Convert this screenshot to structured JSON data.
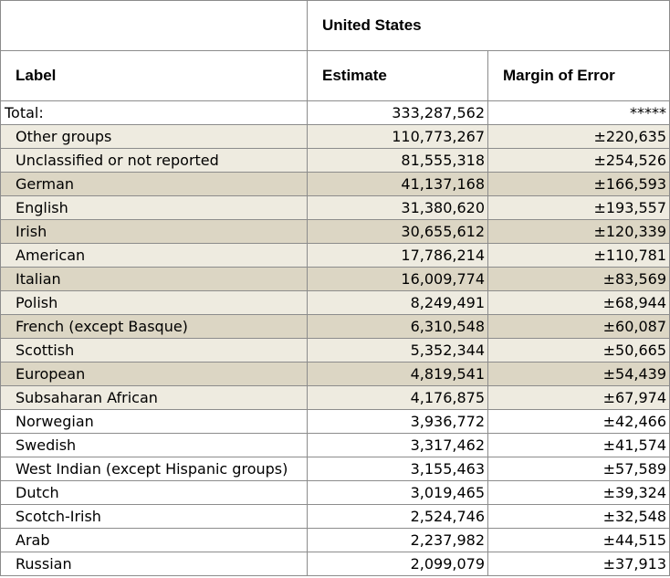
{
  "table": {
    "geo_header": "United States",
    "col_label": "Label",
    "col_estimate": "Estimate",
    "col_moe": "Margin of Error",
    "rows": [
      {
        "label": "Total:",
        "estimate": "333,287,562",
        "moe": "*****"
      },
      {
        "label": "Other groups",
        "estimate": "110,773,267",
        "moe": "±220,635"
      },
      {
        "label": "Unclassified or not reported",
        "estimate": "81,555,318",
        "moe": "±254,526"
      },
      {
        "label": "German",
        "estimate": "41,137,168",
        "moe": "±166,593"
      },
      {
        "label": "English",
        "estimate": "31,380,620",
        "moe": "±193,557"
      },
      {
        "label": "Irish",
        "estimate": "30,655,612",
        "moe": "±120,339"
      },
      {
        "label": "American",
        "estimate": "17,786,214",
        "moe": "±110,781"
      },
      {
        "label": "Italian",
        "estimate": "16,009,774",
        "moe": "±83,569"
      },
      {
        "label": "Polish",
        "estimate": "8,249,491",
        "moe": "±68,944"
      },
      {
        "label": "French (except Basque)",
        "estimate": "6,310,548",
        "moe": "±60,087"
      },
      {
        "label": "Scottish",
        "estimate": "5,352,344",
        "moe": "±50,665"
      },
      {
        "label": "European",
        "estimate": "4,819,541",
        "moe": "±54,439"
      },
      {
        "label": "Subsaharan African",
        "estimate": "4,176,875",
        "moe": "±67,974"
      },
      {
        "label": "Norwegian",
        "estimate": "3,936,772",
        "moe": "±42,466"
      },
      {
        "label": "Swedish",
        "estimate": "3,317,462",
        "moe": "±41,574"
      },
      {
        "label": "West Indian (except Hispanic groups)",
        "estimate": "3,155,463",
        "moe": "±57,589"
      },
      {
        "label": "Dutch",
        "estimate": "3,019,465",
        "moe": "±39,324"
      },
      {
        "label": "Scotch-Irish",
        "estimate": "2,524,746",
        "moe": "±32,548"
      },
      {
        "label": "Arab",
        "estimate": "2,237,982",
        "moe": "±44,515"
      },
      {
        "label": "Russian",
        "estimate": "2,099,079",
        "moe": "±37,913"
      }
    ]
  },
  "colors": {
    "row_white": "#ffffff",
    "row_light": "#eeebe0",
    "row_dark": "#dcd6c4",
    "border": "#8c8c8c"
  }
}
